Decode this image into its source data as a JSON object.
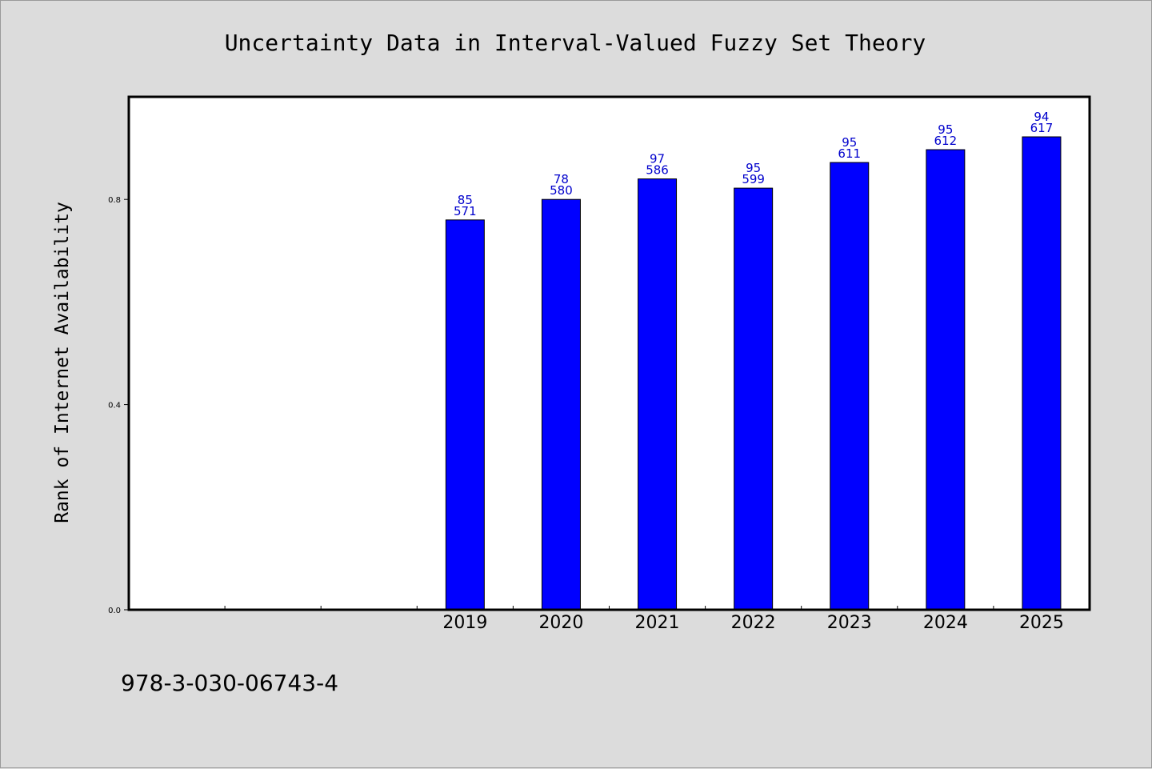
{
  "chart_data": {
    "type": "bar",
    "title": "Uncertainty Data in Interval-Valued Fuzzy Set Theory",
    "xlabel": "",
    "ylabel": "Rank of Internet Availability",
    "categories": [
      "",
      "",
      "",
      "2019",
      "2020",
      "2021",
      "2022",
      "2023",
      "2024",
      "2025"
    ],
    "values": [
      null,
      null,
      null,
      0.76,
      0.8,
      0.84,
      0.822,
      0.872,
      0.897,
      0.922
    ],
    "data_labels": [
      null,
      null,
      null,
      [
        "85",
        "571"
      ],
      [
        "78",
        "580"
      ],
      [
        "97",
        "586"
      ],
      [
        "95",
        "599"
      ],
      [
        "95",
        "611"
      ],
      [
        "95",
        "612"
      ],
      [
        "94",
        "617"
      ]
    ],
    "ylim": [
      0,
      1.0
    ],
    "yticks": [
      0.0,
      0.4,
      0.8
    ],
    "ytick_labels": [
      "0.0",
      "0.4",
      "0.8"
    ],
    "bar_color": "#0000ff",
    "label_color": "#0000cc",
    "grid": false,
    "legend": "none"
  },
  "footer": {
    "code": "978-3-030-06743-4"
  },
  "colors": {
    "background": "#dcdcdc",
    "plot_background": "#ffffff"
  }
}
